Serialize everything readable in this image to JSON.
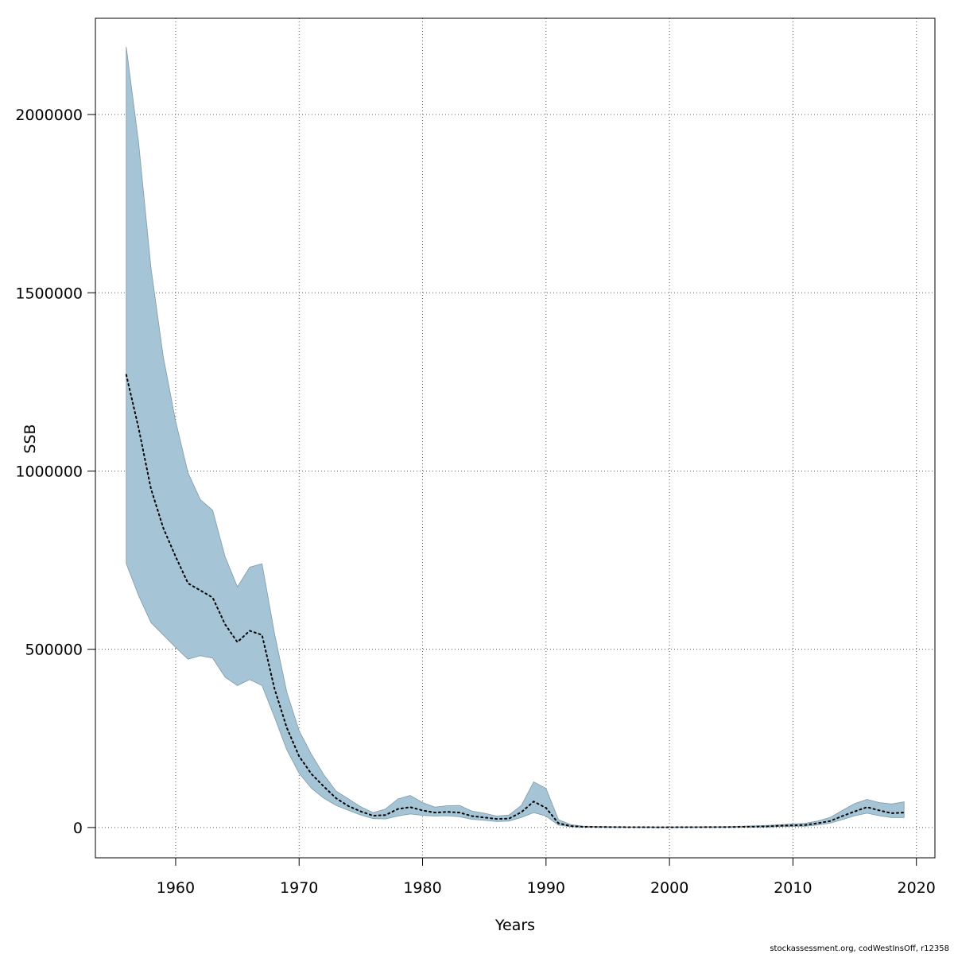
{
  "chart_data": {
    "type": "area",
    "title": "",
    "xlabel": "Years",
    "ylabel": "SSB",
    "xlim": [
      1953.5,
      2021.5
    ],
    "ylim": [
      -85000,
      2270000
    ],
    "xticks": [
      1960,
      1970,
      1980,
      1990,
      2000,
      2010,
      2020
    ],
    "yticks": [
      0,
      500000,
      1000000,
      1500000,
      2000000
    ],
    "xtick_labels": [
      "1960",
      "1970",
      "1980",
      "1990",
      "2000",
      "2010",
      "2020"
    ],
    "ytick_labels": [
      "0",
      "500000",
      "1000000",
      "1500000",
      "2000000"
    ],
    "grid": true,
    "colors": {
      "band": "#a5c4d5",
      "band_edge": "#7f9aa8",
      "line": "#000000",
      "grid": "#555555"
    },
    "x": [
      1956,
      1957,
      1958,
      1959,
      1960,
      1961,
      1962,
      1963,
      1964,
      1965,
      1966,
      1967,
      1968,
      1969,
      1970,
      1971,
      1972,
      1973,
      1974,
      1975,
      1976,
      1977,
      1978,
      1979,
      1980,
      1981,
      1982,
      1983,
      1984,
      1985,
      1986,
      1987,
      1988,
      1989,
      1990,
      1991,
      1992,
      1993,
      1994,
      1995,
      1996,
      1997,
      1998,
      1999,
      2000,
      2001,
      2002,
      2003,
      2004,
      2005,
      2006,
      2007,
      2008,
      2009,
      2010,
      2011,
      2012,
      2013,
      2014,
      2015,
      2016,
      2017,
      2018,
      2019
    ],
    "series": [
      {
        "role": "estimate",
        "values": [
          1270000,
          1120000,
          950000,
          840000,
          760000,
          685000,
          665000,
          645000,
          570000,
          520000,
          552000,
          540000,
          390000,
          280000,
          200000,
          150000,
          115000,
          82000,
          60000,
          45000,
          33000,
          35000,
          52000,
          57000,
          48000,
          42000,
          44000,
          42000,
          32000,
          28000,
          24000,
          25000,
          43000,
          73000,
          55000,
          12000,
          4000,
          2000,
          1500,
          1200,
          1000,
          900,
          800,
          700,
          700,
          800,
          900,
          1000,
          1100,
          1300,
          2000,
          2500,
          3000,
          5000,
          6000,
          7000,
          12000,
          18000,
          32000,
          45000,
          57000,
          48000,
          40000,
          42000
        ]
      },
      {
        "role": "upper",
        "values": [
          2190000,
          1920000,
          1570000,
          1320000,
          1140000,
          995000,
          920000,
          890000,
          760000,
          675000,
          730000,
          740000,
          545000,
          380000,
          272000,
          205000,
          148000,
          102000,
          80000,
          58000,
          42000,
          52000,
          80000,
          90000,
          70000,
          57000,
          61000,
          62000,
          46000,
          40000,
          32000,
          35000,
          62000,
          128000,
          110000,
          22000,
          8000,
          4000,
          3000,
          2500,
          2000,
          1800,
          1600,
          1500,
          1500,
          1700,
          1900,
          2100,
          2300,
          2600,
          4000,
          5000,
          6000,
          8000,
          10000,
          12000,
          18000,
          28000,
          48000,
          67000,
          79000,
          70000,
          66000,
          72000
        ]
      },
      {
        "role": "lower",
        "values": [
          740000,
          650000,
          575000,
          540000,
          505000,
          472000,
          482000,
          475000,
          422000,
          398000,
          415000,
          398000,
          310000,
          218000,
          152000,
          110000,
          82000,
          62000,
          48000,
          35000,
          25000,
          24000,
          32000,
          38000,
          34000,
          32000,
          33000,
          30000,
          23000,
          20000,
          17000,
          18000,
          28000,
          42000,
          32000,
          7000,
          2000,
          1000,
          700,
          500,
          400,
          350,
          300,
          300,
          300,
          350,
          400,
          450,
          500,
          600,
          1000,
          1200,
          1500,
          2500,
          3000,
          3500,
          7000,
          12000,
          22000,
          33000,
          40000,
          33000,
          28000,
          28000
        ]
      }
    ]
  },
  "footer": {
    "text": "stockassessment.org, codWestInsOff, r12358"
  }
}
